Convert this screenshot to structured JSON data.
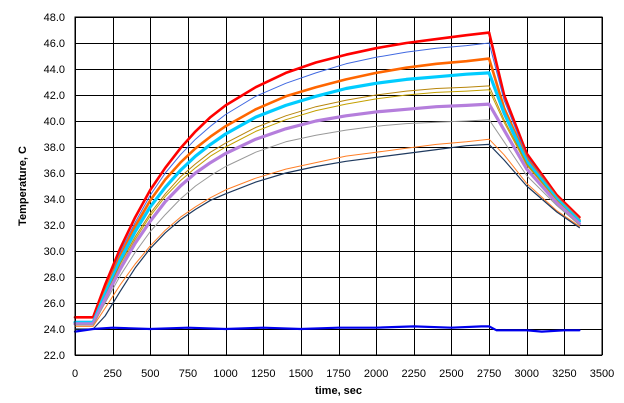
{
  "chart_data": {
    "type": "line",
    "title": "",
    "xlabel": "time, sec",
    "ylabel": "Temperature, C",
    "xlim": [
      0,
      3500
    ],
    "ylim": [
      22.0,
      48.0
    ],
    "xticks": [
      0,
      250,
      500,
      750,
      1000,
      1250,
      1500,
      1750,
      2000,
      2250,
      2500,
      2750,
      3000,
      3250,
      3500
    ],
    "xtick_labels": [
      "0",
      "250",
      "500",
      "750",
      "1000",
      "1250",
      "1500",
      "1750",
      "2000",
      "2250",
      "2500",
      "2750",
      "3000",
      "3250",
      "3500"
    ],
    "yticks": [
      22,
      24,
      26,
      28,
      30,
      32,
      34,
      36,
      38,
      40,
      42,
      44,
      46,
      48
    ],
    "ytick_labels": [
      "22.0",
      "24.0",
      "26.0",
      "28.0",
      "30.0",
      "32.0",
      "34.0",
      "36.0",
      "38.0",
      "40.0",
      "42.0",
      "44.0",
      "46.0",
      "48.0"
    ],
    "grid": true,
    "legend": "none",
    "series": [
      {
        "color": "#ff0000",
        "width": 2.6,
        "x": [
          0,
          120,
          200,
          300,
          400,
          500,
          600,
          700,
          800,
          900,
          1000,
          1200,
          1400,
          1600,
          1800,
          2000,
          2200,
          2400,
          2600,
          2750,
          2850,
          3000,
          3200,
          3350
        ],
        "y": [
          24.9,
          24.9,
          27.4,
          30.2,
          32.6,
          34.7,
          36.4,
          37.9,
          39.2,
          40.3,
          41.2,
          42.6,
          43.7,
          44.5,
          45.1,
          45.6,
          46.0,
          46.3,
          46.6,
          46.8,
          42.0,
          37.5,
          34.3,
          32.6
        ]
      },
      {
        "color": "#4169e1",
        "width": 1.0,
        "x": [
          0,
          120,
          200,
          300,
          400,
          500,
          600,
          700,
          800,
          900,
          1000,
          1200,
          1400,
          1600,
          1800,
          2000,
          2200,
          2400,
          2600,
          2750,
          2850,
          3000,
          3200,
          3350
        ],
        "y": [
          24.6,
          24.6,
          27.0,
          29.9,
          32.2,
          34.3,
          36.0,
          37.4,
          38.6,
          39.6,
          40.5,
          41.9,
          42.9,
          43.7,
          44.4,
          44.9,
          45.3,
          45.6,
          45.8,
          46.0,
          41.6,
          37.3,
          34.2,
          32.5
        ]
      },
      {
        "color": "#ff6600",
        "width": 2.6,
        "x": [
          0,
          120,
          200,
          300,
          400,
          500,
          600,
          700,
          800,
          900,
          1000,
          1200,
          1400,
          1600,
          1800,
          2000,
          2200,
          2400,
          2600,
          2750,
          2850,
          3000,
          3200,
          3350
        ],
        "y": [
          24.5,
          24.5,
          26.9,
          29.6,
          31.9,
          33.9,
          35.5,
          36.8,
          37.9,
          38.8,
          39.6,
          40.9,
          41.9,
          42.6,
          43.2,
          43.7,
          44.1,
          44.4,
          44.6,
          44.8,
          41.0,
          37.1,
          34.1,
          32.4
        ]
      },
      {
        "color": "#00ccff",
        "width": 3.2,
        "x": [
          0,
          120,
          200,
          300,
          400,
          500,
          600,
          700,
          800,
          900,
          1000,
          1200,
          1400,
          1600,
          1800,
          2000,
          2200,
          2400,
          2600,
          2750,
          2850,
          3000,
          3200,
          3350
        ],
        "y": [
          24.5,
          24.5,
          26.7,
          29.3,
          31.5,
          33.4,
          34.9,
          36.2,
          37.3,
          38.2,
          39.0,
          40.3,
          41.2,
          41.9,
          42.5,
          42.9,
          43.2,
          43.4,
          43.6,
          43.7,
          40.6,
          36.9,
          34.0,
          32.3
        ]
      },
      {
        "color": "#b8860b",
        "width": 1.0,
        "x": [
          0,
          120,
          200,
          300,
          400,
          500,
          600,
          700,
          800,
          900,
          1000,
          1200,
          1400,
          1600,
          1800,
          2000,
          2200,
          2400,
          2600,
          2750,
          2850,
          3000,
          3200,
          3350
        ],
        "y": [
          24.4,
          24.4,
          26.5,
          29.0,
          31.1,
          32.9,
          34.4,
          35.7,
          36.7,
          37.6,
          38.3,
          39.5,
          40.4,
          41.1,
          41.6,
          42.0,
          42.3,
          42.5,
          42.6,
          42.7,
          40.1,
          36.7,
          33.9,
          32.2
        ]
      },
      {
        "color": "#c4a000",
        "width": 1.0,
        "x": [
          0,
          120,
          200,
          300,
          400,
          500,
          600,
          700,
          800,
          900,
          1000,
          1200,
          1400,
          1600,
          1800,
          2000,
          2200,
          2400,
          2600,
          2750,
          2850,
          3000,
          3200,
          3350
        ],
        "y": [
          24.4,
          24.4,
          26.4,
          28.8,
          30.9,
          32.7,
          34.2,
          35.4,
          36.4,
          37.3,
          38.0,
          39.2,
          40.1,
          40.8,
          41.3,
          41.7,
          42.0,
          42.2,
          42.3,
          42.4,
          39.9,
          36.6,
          33.9,
          32.2
        ]
      },
      {
        "color": "#b57edc",
        "width": 3.2,
        "x": [
          0,
          120,
          200,
          300,
          400,
          500,
          600,
          700,
          800,
          900,
          1000,
          1200,
          1400,
          1600,
          1800,
          2000,
          2200,
          2400,
          2600,
          2750,
          2850,
          3000,
          3200,
          3350
        ],
        "y": [
          24.4,
          24.4,
          26.3,
          28.6,
          30.6,
          32.3,
          33.8,
          35.0,
          36.0,
          36.8,
          37.5,
          38.6,
          39.4,
          40.0,
          40.4,
          40.7,
          40.9,
          41.1,
          41.2,
          41.3,
          39.3,
          36.3,
          33.7,
          32.1
        ]
      },
      {
        "color": "#999999",
        "width": 1.0,
        "x": [
          0,
          120,
          200,
          300,
          400,
          500,
          600,
          700,
          800,
          900,
          1000,
          1200,
          1400,
          1600,
          1800,
          2000,
          2200,
          2400,
          2600,
          2750,
          2850,
          3000,
          3200,
          3350
        ],
        "y": [
          24.3,
          24.3,
          26.0,
          28.1,
          29.9,
          31.5,
          32.8,
          34.0,
          35.0,
          35.8,
          36.5,
          37.6,
          38.4,
          38.9,
          39.3,
          39.6,
          39.8,
          39.9,
          40.0,
          40.1,
          38.4,
          35.8,
          33.5,
          32.0
        ]
      },
      {
        "color": "#ff7f27",
        "width": 1.0,
        "x": [
          0,
          120,
          200,
          300,
          400,
          500,
          600,
          700,
          800,
          900,
          1000,
          1200,
          1400,
          1600,
          1800,
          2000,
          2200,
          2400,
          2600,
          2750,
          2850,
          3000,
          3200,
          3350
        ],
        "y": [
          24.2,
          24.2,
          25.6,
          27.4,
          29.0,
          30.4,
          31.6,
          32.6,
          33.4,
          34.1,
          34.7,
          35.6,
          36.3,
          36.8,
          37.3,
          37.6,
          37.9,
          38.2,
          38.4,
          38.6,
          37.4,
          35.2,
          33.1,
          31.9
        ]
      },
      {
        "color": "#1f3a5f",
        "width": 1.2,
        "x": [
          0,
          120,
          200,
          300,
          400,
          500,
          600,
          700,
          800,
          900,
          1000,
          1200,
          1400,
          1600,
          1800,
          2000,
          2200,
          2400,
          2600,
          2750,
          2850,
          3000,
          3200,
          3350
        ],
        "y": [
          24.0,
          24.0,
          25.0,
          26.9,
          28.7,
          30.2,
          31.4,
          32.4,
          33.2,
          33.9,
          34.4,
          35.3,
          36.0,
          36.5,
          36.9,
          37.2,
          37.5,
          37.8,
          38.1,
          38.2,
          37.0,
          35.0,
          33.0,
          31.8
        ]
      },
      {
        "color": "#0000ee",
        "width": 2.2,
        "x": [
          0,
          120,
          250,
          500,
          750,
          1000,
          1250,
          1500,
          1750,
          2000,
          2250,
          2500,
          2700,
          2750,
          2800,
          3000,
          3100,
          3250,
          3350
        ],
        "y": [
          23.8,
          24.0,
          24.1,
          24.0,
          24.1,
          24.0,
          24.1,
          24.0,
          24.1,
          24.1,
          24.2,
          24.1,
          24.2,
          24.2,
          23.9,
          23.9,
          23.8,
          23.9,
          23.9
        ]
      }
    ]
  }
}
